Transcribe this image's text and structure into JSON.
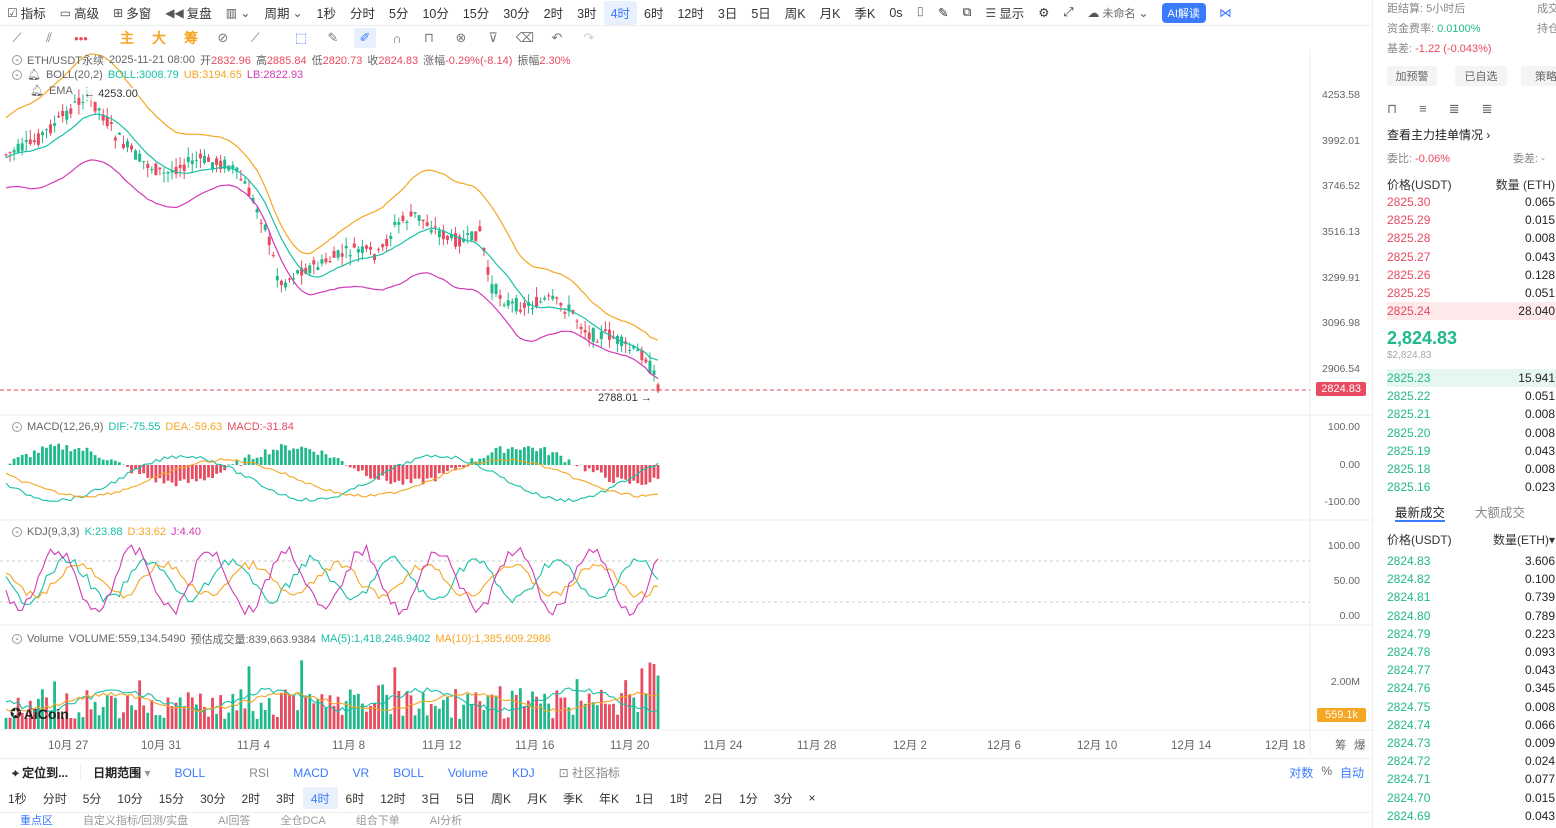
{
  "toolbar": {
    "items": [
      "指标",
      "高级",
      "多窗",
      "复盘",
      "周期"
    ],
    "periods": [
      "1秒",
      "分时",
      "5分",
      "10分",
      "15分",
      "30分",
      "2时",
      "3时",
      "4时",
      "6时",
      "12时",
      "3日",
      "5日",
      "周K",
      "月K",
      "季K"
    ],
    "active_period": "4时",
    "timer": "0s",
    "display": "显示",
    "unnamed": "未命名",
    "ai_button": "AI解读"
  },
  "drawing": {
    "main": "主",
    "big": "大",
    "chips": "筹"
  },
  "legend": {
    "symbol": "ETH/USDT永续",
    "date": "2025-11-21 08:00",
    "open_label": "开",
    "open": "2832.96",
    "high_label": "高",
    "high": "2885.84",
    "low_label": "低",
    "low": "2820.73",
    "close_label": "收",
    "close": "2824.83",
    "change_label": "涨幅",
    "change": "-0.29%(-8.14)",
    "amp_label": "振幅",
    "amp": "2.30%",
    "boll": "BOLL(20,2)",
    "boll_val": "BOLL:3008.79",
    "ub": "UB:3194.65",
    "lb": "LB:2822.93",
    "ema": "EMA",
    "macd": "MACD(12,26,9)",
    "dif": "DIF:-75.55",
    "dea": "DEA:-59.63",
    "macd_val": "MACD:-31.84",
    "kdj": "KDJ(9,3,3)",
    "k": "K:23.88",
    "d": "D:33.62",
    "j": "J:4.40",
    "volume": "Volume",
    "volume_val": "VOLUME:559,134.5490",
    "est_vol": "预估成交量:839,663.9384",
    "ma5": "MA(5):1,418,246.9402",
    "ma10": "MA(10):1,385,609.2986"
  },
  "annotations": {
    "high": "4253.00",
    "low": "2788.01"
  },
  "yaxis": {
    "main": [
      "4253.58",
      "3992.01",
      "3746.52",
      "3516.13",
      "3299.91",
      "3096.98",
      "2906.54"
    ],
    "price_tag": "2824.83",
    "macd": [
      "100.00",
      "0.00",
      "-100.00"
    ],
    "kdj": [
      "100.00",
      "50.00",
      "0.00"
    ],
    "vol": "2.00M",
    "vol_tag": "559.1k"
  },
  "xaxis": [
    "10月 27",
    "10月 31",
    "11月 4",
    "11月 8",
    "11月 12",
    "11月 16",
    "11月 20",
    "11月 24",
    "11月 28",
    "12月 2",
    "12月 6",
    "12月 10",
    "12月 14",
    "12月 18"
  ],
  "xaxis_right": [
    "筹",
    "爆"
  ],
  "logo": "AiCoin",
  "indicator_bar": {
    "locate": "定位到...",
    "range": "日期范围",
    "boll": "BOLL",
    "items": [
      "RSI",
      "MACD",
      "VR",
      "BOLL",
      "Volume",
      "KDJ"
    ],
    "community": "社区指标",
    "right": [
      "对数",
      "%",
      "自动"
    ]
  },
  "period_bar": [
    "1秒",
    "分时",
    "5分",
    "10分",
    "15分",
    "30分",
    "2时",
    "3时",
    "4时",
    "6时",
    "12时",
    "3日",
    "5日",
    "周K",
    "月K",
    "季K",
    "年K",
    "1日",
    "1时",
    "2日",
    "1分",
    "3分",
    "×"
  ],
  "period_active": "4时",
  "bottom_tabs": [
    "重点区",
    "自定义指标/回测/实盘",
    "AI回答",
    "全仓DCA",
    "组合下单",
    "AI分析"
  ],
  "rpanel": {
    "settle_label": "距结算:",
    "settle": "5小时后",
    "deal": "成交",
    "funding_label": "资金费率:",
    "funding": "0.0100%",
    "hold": "持仓",
    "basis_label": "基差:",
    "basis": "-1.22 (-0.043%)",
    "btn_alert": "加预警",
    "btn_fav": "已自选",
    "btn_strategy": "策略",
    "main_orders": "查看主力挂单情况",
    "ratio_label": "委比:",
    "ratio": "-0.06%",
    "diff_label": "委差:",
    "diff": "-",
    "price_hdr": "价格(USDT)",
    "qty_hdr": "数量 (ETH)",
    "asks": [
      {
        "p": "2825.30",
        "q": "0.065"
      },
      {
        "p": "2825.29",
        "q": "0.015"
      },
      {
        "p": "2825.28",
        "q": "0.008"
      },
      {
        "p": "2825.27",
        "q": "0.043"
      },
      {
        "p": "2825.26",
        "q": "0.128"
      },
      {
        "p": "2825.25",
        "q": "0.051"
      },
      {
        "p": "2825.24",
        "q": "28.040"
      }
    ],
    "last_price": "2,824.83",
    "last_usd": "$2,824.83",
    "bids": [
      {
        "p": "2825.23",
        "q": "15.941"
      },
      {
        "p": "2825.22",
        "q": "0.051"
      },
      {
        "p": "2825.21",
        "q": "0.008"
      },
      {
        "p": "2825.20",
        "q": "0.008"
      },
      {
        "p": "2825.19",
        "q": "0.043"
      },
      {
        "p": "2825.18",
        "q": "0.008"
      },
      {
        "p": "2825.16",
        "q": "0.023"
      }
    ],
    "tab_latest": "最新成交",
    "tab_large": "大额成交",
    "trade_price_hdr": "价格(USDT)",
    "trade_qty_hdr": "数量(ETH)",
    "trades": [
      {
        "p": "2824.83",
        "q": "3.606"
      },
      {
        "p": "2824.82",
        "q": "0.100"
      },
      {
        "p": "2824.81",
        "q": "0.739"
      },
      {
        "p": "2824.80",
        "q": "0.789"
      },
      {
        "p": "2824.79",
        "q": "0.223"
      },
      {
        "p": "2824.78",
        "q": "0.093"
      },
      {
        "p": "2824.77",
        "q": "0.043"
      },
      {
        "p": "2824.76",
        "q": "0.345"
      },
      {
        "p": "2824.75",
        "q": "0.008"
      },
      {
        "p": "2824.74",
        "q": "0.066"
      },
      {
        "p": "2824.73",
        "q": "0.009"
      },
      {
        "p": "2824.72",
        "q": "0.024"
      },
      {
        "p": "2824.71",
        "q": "0.077"
      },
      {
        "p": "2824.70",
        "q": "0.015"
      },
      {
        "p": "2824.69",
        "q": "0.043"
      }
    ]
  },
  "colors": {
    "up": "#1fb98b",
    "down": "#e84a5f",
    "boll_up": "#f5a623",
    "boll_mid": "#17c0a8",
    "boll_low": "#d23ab7",
    "accent": "#3a7afe"
  }
}
